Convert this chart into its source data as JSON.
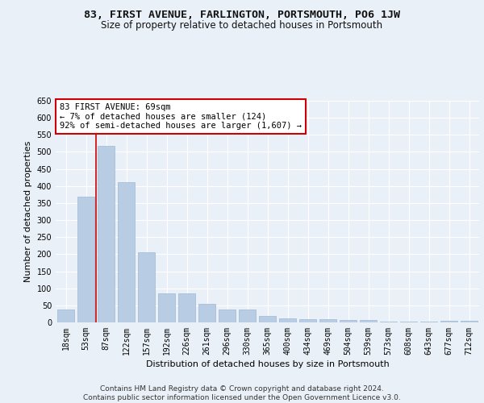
{
  "title1": "83, FIRST AVENUE, FARLINGTON, PORTSMOUTH, PO6 1JW",
  "title2": "Size of property relative to detached houses in Portsmouth",
  "xlabel": "Distribution of detached houses by size in Portsmouth",
  "ylabel": "Number of detached properties",
  "categories": [
    "18sqm",
    "53sqm",
    "87sqm",
    "122sqm",
    "157sqm",
    "192sqm",
    "226sqm",
    "261sqm",
    "296sqm",
    "330sqm",
    "365sqm",
    "400sqm",
    "434sqm",
    "469sqm",
    "504sqm",
    "539sqm",
    "573sqm",
    "608sqm",
    "643sqm",
    "677sqm",
    "712sqm"
  ],
  "values": [
    37,
    368,
    517,
    411,
    206,
    85,
    85,
    54,
    37,
    37,
    20,
    11,
    10,
    10,
    7,
    6,
    3,
    3,
    3,
    5,
    5
  ],
  "bar_color": "#b8cce4",
  "bar_edge_color": "#9eb8d4",
  "annotation_text": "83 FIRST AVENUE: 69sqm\n← 7% of detached houses are smaller (124)\n92% of semi-detached houses are larger (1,607) →",
  "annotation_box_color": "#ffffff",
  "annotation_box_edge_color": "#cc0000",
  "vline_color": "#cc0000",
  "vline_x": 1.5,
  "ylim": [
    0,
    650
  ],
  "yticks": [
    0,
    50,
    100,
    150,
    200,
    250,
    300,
    350,
    400,
    450,
    500,
    550,
    600,
    650
  ],
  "bg_color": "#eaf0f8",
  "plot_bg_color": "#eaf0f8",
  "footer": "Contains HM Land Registry data © Crown copyright and database right 2024.\nContains public sector information licensed under the Open Government Licence v3.0.",
  "title1_fontsize": 9.5,
  "title2_fontsize": 8.5,
  "xlabel_fontsize": 8,
  "ylabel_fontsize": 8,
  "annotation_fontsize": 7.5,
  "footer_fontsize": 6.5,
  "tick_fontsize": 7
}
